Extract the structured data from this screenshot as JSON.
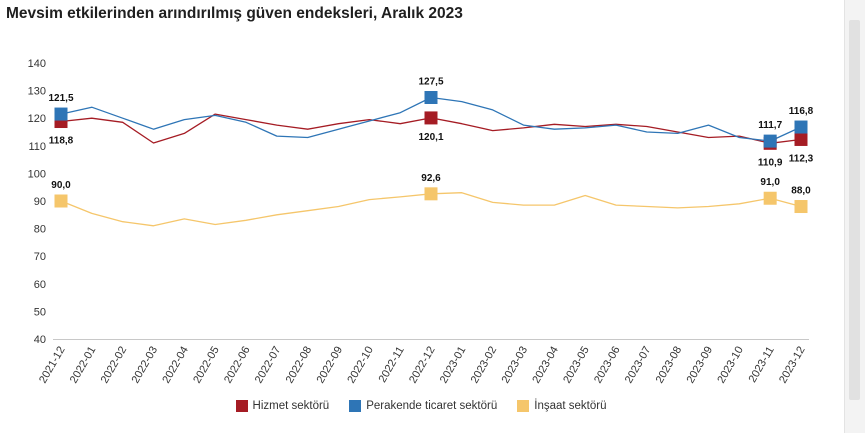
{
  "title": "Mevsim etkilerinden arındırılmış güven endeksleri, Aralık 2023",
  "chart_data": {
    "type": "line",
    "title": "Mevsim etkilerinden arındırılmış güven endeksleri, Aralık 2023",
    "categories": [
      "2021-12",
      "2022-01",
      "2022-02",
      "2022-03",
      "2022-04",
      "2022-05",
      "2022-06",
      "2022-07",
      "2022-08",
      "2022-09",
      "2022-10",
      "2022-11",
      "2022-12",
      "2023-01",
      "2023-02",
      "2023-03",
      "2023-04",
      "2023-05",
      "2023-06",
      "2023-07",
      "2023-08",
      "2023-09",
      "2023-10",
      "2023-11",
      "2023-12"
    ],
    "ylim": [
      40,
      140
    ],
    "yticks": [
      40,
      50,
      60,
      70,
      80,
      90,
      100,
      110,
      120,
      130,
      140
    ],
    "grid": false,
    "legend_position": "bottom",
    "series": [
      {
        "name": "Hizmet sektörü",
        "color": "#a51c24",
        "values": [
          118.8,
          120.0,
          118.5,
          111.0,
          114.5,
          121.5,
          119.5,
          117.5,
          116.0,
          118.0,
          119.5,
          118.0,
          120.1,
          118.0,
          115.5,
          116.5,
          117.8,
          117.0,
          117.8,
          117.0,
          115.0,
          113.0,
          113.5,
          110.9,
          112.3
        ]
      },
      {
        "name": "Perakende ticaret sektörü",
        "color": "#2e75b6",
        "values": [
          121.5,
          124.0,
          120.0,
          116.0,
          119.5,
          121.0,
          118.5,
          113.5,
          113.0,
          116.0,
          119.0,
          122.0,
          127.5,
          126.0,
          123.0,
          117.5,
          116.0,
          116.5,
          117.5,
          115.0,
          114.5,
          117.5,
          113.0,
          111.7,
          116.8
        ]
      },
      {
        "name": "İnşaat sektörü",
        "color": "#f5c66b",
        "values": [
          90.0,
          85.5,
          82.5,
          81.0,
          83.5,
          81.5,
          83.0,
          85.0,
          86.5,
          88.0,
          90.5,
          91.5,
          92.6,
          93.0,
          89.5,
          88.5,
          88.5,
          92.0,
          88.5,
          88.0,
          87.5,
          88.0,
          89.0,
          91.0,
          88.0
        ]
      }
    ],
    "annotations": [
      {
        "series": 0,
        "index": 0,
        "label": "118,8",
        "pos": "below"
      },
      {
        "series": 1,
        "index": 0,
        "label": "121,5",
        "pos": "above"
      },
      {
        "series": 2,
        "index": 0,
        "label": "90,0",
        "pos": "above"
      },
      {
        "series": 0,
        "index": 12,
        "label": "120,1",
        "pos": "below"
      },
      {
        "series": 1,
        "index": 12,
        "label": "127,5",
        "pos": "above"
      },
      {
        "series": 2,
        "index": 12,
        "label": "92,6",
        "pos": "above"
      },
      {
        "series": 0,
        "index": 23,
        "label": "110,9",
        "pos": "below"
      },
      {
        "series": 1,
        "index": 23,
        "label": "111,7",
        "pos": "above"
      },
      {
        "series": 2,
        "index": 23,
        "label": "91,0",
        "pos": "above"
      },
      {
        "series": 0,
        "index": 24,
        "label": "112,3",
        "pos": "below"
      },
      {
        "series": 1,
        "index": 24,
        "label": "116,8",
        "pos": "above"
      },
      {
        "series": 2,
        "index": 24,
        "label": "88,0",
        "pos": "above"
      }
    ]
  }
}
